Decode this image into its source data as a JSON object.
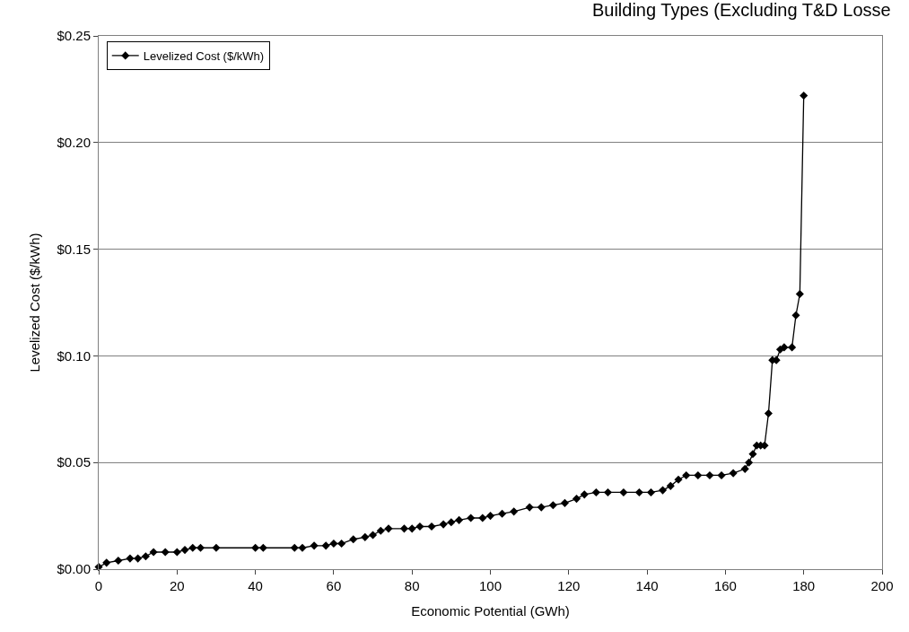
{
  "chart_data": {
    "type": "line",
    "title": "Building Types (Excluding T&D Losse",
    "xlabel": "Economic Potential (GWh)",
    "ylabel": "Levelized Cost ($/kWh)",
    "x": [
      0,
      2,
      5,
      8,
      10,
      12,
      14,
      17,
      20,
      22,
      24,
      26,
      30,
      40,
      42,
      50,
      52,
      55,
      58,
      60,
      62,
      65,
      68,
      70,
      72,
      74,
      78,
      80,
      82,
      85,
      88,
      90,
      92,
      95,
      98,
      100,
      103,
      106,
      110,
      113,
      116,
      119,
      122,
      124,
      127,
      130,
      134,
      138,
      141,
      144,
      146,
      148,
      150,
      153,
      156,
      159,
      162,
      165,
      166,
      167,
      168,
      169,
      170,
      171,
      172,
      173,
      174,
      175,
      177,
      178,
      179,
      180
    ],
    "series": [
      {
        "name": "Levelized Cost ($/kWh)",
        "color": "#000000",
        "values": [
          0.001,
          0.003,
          0.004,
          0.005,
          0.005,
          0.006,
          0.008,
          0.008,
          0.008,
          0.009,
          0.01,
          0.01,
          0.01,
          0.01,
          0.01,
          0.01,
          0.01,
          0.011,
          0.011,
          0.012,
          0.012,
          0.014,
          0.015,
          0.016,
          0.018,
          0.019,
          0.019,
          0.019,
          0.02,
          0.02,
          0.021,
          0.022,
          0.023,
          0.024,
          0.024,
          0.025,
          0.026,
          0.027,
          0.029,
          0.029,
          0.03,
          0.031,
          0.033,
          0.035,
          0.036,
          0.036,
          0.036,
          0.036,
          0.036,
          0.037,
          0.039,
          0.042,
          0.044,
          0.044,
          0.044,
          0.044,
          0.045,
          0.047,
          0.05,
          0.054,
          0.058,
          0.058,
          0.058,
          0.073,
          0.098,
          0.098,
          0.103,
          0.104,
          0.104,
          0.119,
          0.129,
          0.222
        ]
      }
    ],
    "xlim": [
      0,
      200
    ],
    "xticks": [
      0,
      20,
      40,
      60,
      80,
      100,
      120,
      140,
      160,
      180,
      200
    ],
    "ylim": [
      0,
      0.25
    ],
    "yticks": [
      {
        "value": 0,
        "label": "$0.00"
      },
      {
        "value": 0.05,
        "label": "$0.05"
      },
      {
        "value": 0.1,
        "label": "$0.10"
      },
      {
        "value": 0.15,
        "label": "$0.15"
      },
      {
        "value": 0.2,
        "label": "$0.20"
      },
      {
        "value": 0.25,
        "label": "$0.25"
      }
    ],
    "grid": "y",
    "legend": "top left",
    "marker": "diamond",
    "line_style": "solid"
  }
}
